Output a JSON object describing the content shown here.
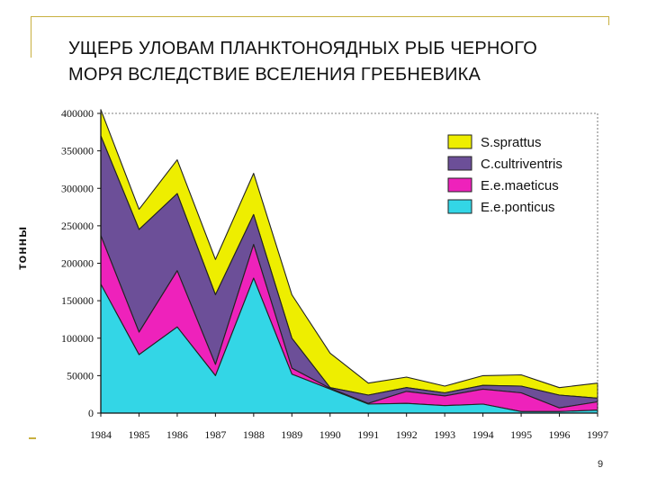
{
  "slide": {
    "title": "УЩЕРБ УЛОВАМ  ПЛАНКТОНОЯДНЫХ  РЫБ ЧЕРНОГО МОРЯ ВСЛЕДСТВИЕ ВСЕЛЕНИЯ ГРЕБНЕВИКА",
    "page_number": "9",
    "accent_color": "#c8b040"
  },
  "chart_data": {
    "type": "area",
    "stacked": true,
    "title": "",
    "xlabel": "",
    "ylabel": "тонны",
    "ylim": [
      0,
      400000
    ],
    "yticks": [
      0,
      50000,
      100000,
      150000,
      200000,
      250000,
      300000,
      350000,
      400000
    ],
    "ytick_labels": [
      "0",
      "50000",
      "100000",
      "150000",
      "200000",
      "250000",
      "300000",
      "350000",
      "400000"
    ],
    "categories": [
      "1984",
      "1985",
      "1986",
      "1987",
      "1988",
      "1989",
      "1990",
      "1991",
      "1992",
      "1993",
      "1994",
      "1995",
      "1996",
      "1997"
    ],
    "legend_position": "top-right",
    "series": [
      {
        "name": "E.e.ponticus",
        "color": "#33d6e6",
        "values": [
          172000,
          78000,
          115000,
          50000,
          180000,
          52000,
          32000,
          12000,
          13000,
          10000,
          12000,
          2000,
          2000,
          4000
        ]
      },
      {
        "name": "E.e.maeticus",
        "color": "#ee22bb",
        "values": [
          65000,
          30000,
          75000,
          15000,
          45000,
          8000,
          1000,
          1000,
          16000,
          13000,
          20000,
          25000,
          5000,
          11000
        ]
      },
      {
        "name": "C.cultriventris",
        "color": "#6c4f98",
        "values": [
          133000,
          137000,
          103000,
          93000,
          40000,
          40000,
          1000,
          11000,
          5000,
          4000,
          5000,
          9000,
          17000,
          5000
        ]
      },
      {
        "name": "S.sprattus",
        "color": "#eeee00",
        "values": [
          35000,
          27000,
          45000,
          47000,
          55000,
          58000,
          46000,
          16000,
          14000,
          9000,
          13000,
          15000,
          10000,
          20000
        ]
      }
    ]
  }
}
